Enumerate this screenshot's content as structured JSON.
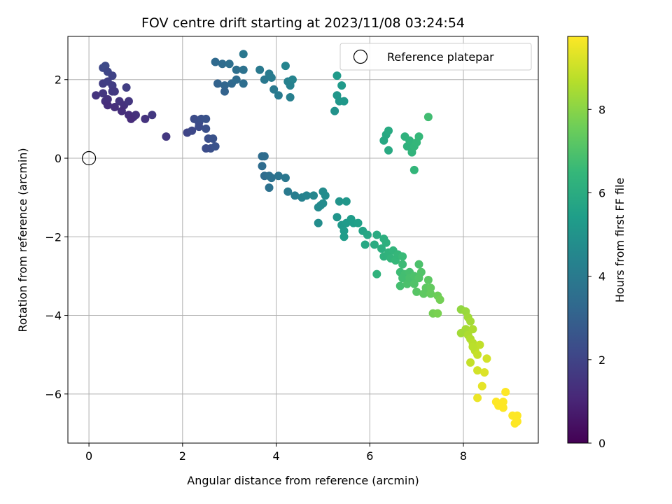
{
  "chart_data": {
    "type": "scatter",
    "title": "FOV centre drift starting at 2023/11/08 03:24:54",
    "xlabel": "Angular distance from reference (arcmin)",
    "ylabel": "Rotation from reference (arcmin)",
    "xlim": [
      -0.45,
      9.6
    ],
    "ylim": [
      -7.25,
      3.1
    ],
    "x_ticks": [
      0,
      2,
      4,
      6,
      8
    ],
    "x_tick_labels": [
      "0",
      "2",
      "4",
      "6",
      "8"
    ],
    "y_ticks": [
      -6,
      -4,
      -2,
      0,
      2
    ],
    "y_tick_labels": [
      "−6",
      "−4",
      "−2",
      "0",
      "2"
    ],
    "grid": true,
    "legend": {
      "placement": "top-right",
      "entries": [
        {
          "label": "Reference platepar",
          "marker": "open-circle"
        }
      ]
    },
    "reference_point": {
      "x": 0,
      "y": 0
    },
    "colorbar": {
      "label": "Hours from first FF file",
      "range": [
        0,
        9.75
      ],
      "ticks": [
        0,
        2,
        4,
        6,
        8
      ],
      "tick_labels": [
        "0",
        "2",
        "4",
        "6",
        "8"
      ],
      "colormap": "viridis",
      "stops": [
        "#440154",
        "#482878",
        "#3e4989",
        "#31688e",
        "#26828e",
        "#1f9e89",
        "#35b779",
        "#6ece58",
        "#b5de2b",
        "#fde725"
      ]
    },
    "series": [
      {
        "points": [
          [
            6.3,
            0.45
          ],
          [
            6.35,
            0.6
          ],
          [
            6.4,
            0.7
          ],
          [
            6.4,
            0.2
          ],
          [
            6.75,
            0.55
          ],
          [
            6.8,
            0.3
          ],
          [
            6.85,
            0.45
          ],
          [
            6.9,
            0.15
          ],
          [
            6.95,
            0.3
          ],
          [
            7.0,
            0.4
          ],
          [
            7.05,
            0.55
          ],
          [
            6.95,
            -0.3
          ],
          [
            7.25,
            1.05
          ],
          [
            5.3,
            2.1
          ],
          [
            5.3,
            1.6
          ],
          [
            5.4,
            1.85
          ],
          [
            5.25,
            1.2
          ],
          [
            5.35,
            1.45
          ],
          [
            5.45,
            1.45
          ],
          [
            3.65,
            2.25
          ],
          [
            3.75,
            2.0
          ],
          [
            3.85,
            2.15
          ],
          [
            3.9,
            2.05
          ],
          [
            3.95,
            1.75
          ],
          [
            4.05,
            1.6
          ],
          [
            4.2,
            2.35
          ],
          [
            4.25,
            1.95
          ],
          [
            4.3,
            1.55
          ],
          [
            4.35,
            2.0
          ],
          [
            4.3,
            1.85
          ],
          [
            2.7,
            2.45
          ],
          [
            2.85,
            2.4
          ],
          [
            3.0,
            2.4
          ],
          [
            3.15,
            2.25
          ],
          [
            3.3,
            2.65
          ],
          [
            3.3,
            2.25
          ],
          [
            2.75,
            1.9
          ],
          [
            2.9,
            1.85
          ],
          [
            3.05,
            1.9
          ],
          [
            3.15,
            2.0
          ],
          [
            3.3,
            1.9
          ],
          [
            2.9,
            1.7
          ],
          [
            0.3,
            2.3
          ],
          [
            0.35,
            2.35
          ],
          [
            0.4,
            2.2
          ],
          [
            0.5,
            2.1
          ],
          [
            0.3,
            1.9
          ],
          [
            0.4,
            1.95
          ],
          [
            0.5,
            1.85
          ],
          [
            0.3,
            1.65
          ],
          [
            0.5,
            1.7
          ],
          [
            0.4,
            1.5
          ],
          [
            0.35,
            1.45
          ],
          [
            0.55,
            1.7
          ],
          [
            0.15,
            1.6
          ],
          [
            0.8,
            1.8
          ],
          [
            0.4,
            1.35
          ],
          [
            0.55,
            1.3
          ],
          [
            0.65,
            1.45
          ],
          [
            0.75,
            1.35
          ],
          [
            0.85,
            1.45
          ],
          [
            0.7,
            1.2
          ],
          [
            0.85,
            1.1
          ],
          [
            0.95,
            1.05
          ],
          [
            1.0,
            1.1
          ],
          [
            0.9,
            1.0
          ],
          [
            1.2,
            1.0
          ],
          [
            1.35,
            1.1
          ],
          [
            1.65,
            0.55
          ],
          [
            2.1,
            0.65
          ],
          [
            2.2,
            0.7
          ],
          [
            2.25,
            1.0
          ],
          [
            2.35,
            0.9
          ],
          [
            2.4,
            1.0
          ],
          [
            2.5,
            1.0
          ],
          [
            2.35,
            0.8
          ],
          [
            2.5,
            0.75
          ],
          [
            2.55,
            0.5
          ],
          [
            2.6,
            0.25
          ],
          [
            2.7,
            0.3
          ],
          [
            2.65,
            0.5
          ],
          [
            2.5,
            0.25
          ],
          [
            3.7,
            0.05
          ],
          [
            3.75,
            0.05
          ],
          [
            3.7,
            -0.2
          ],
          [
            3.75,
            -0.45
          ],
          [
            3.85,
            -0.45
          ],
          [
            3.9,
            -0.5
          ],
          [
            3.85,
            -0.75
          ],
          [
            4.05,
            -0.45
          ],
          [
            4.2,
            -0.5
          ],
          [
            4.25,
            -0.85
          ],
          [
            4.4,
            -0.95
          ],
          [
            4.55,
            -1.0
          ],
          [
            4.65,
            -0.95
          ],
          [
            4.8,
            -0.95
          ],
          [
            5.0,
            -0.85
          ],
          [
            5.05,
            -0.95
          ],
          [
            5.0,
            -1.15
          ],
          [
            4.95,
            -1.2
          ],
          [
            4.9,
            -1.25
          ],
          [
            4.9,
            -1.65
          ],
          [
            5.35,
            -1.1
          ],
          [
            5.5,
            -1.1
          ],
          [
            5.3,
            -1.5
          ],
          [
            5.4,
            -1.7
          ],
          [
            5.45,
            -1.85
          ],
          [
            5.45,
            -2.0
          ],
          [
            5.5,
            -1.65
          ],
          [
            5.6,
            -1.55
          ],
          [
            5.65,
            -1.65
          ],
          [
            5.75,
            -1.65
          ],
          [
            5.85,
            -1.85
          ],
          [
            5.95,
            -1.95
          ],
          [
            5.9,
            -2.2
          ],
          [
            6.1,
            -2.2
          ],
          [
            6.15,
            -1.95
          ],
          [
            6.3,
            -2.05
          ],
          [
            6.35,
            -2.15
          ],
          [
            6.25,
            -2.3
          ],
          [
            6.3,
            -2.5
          ],
          [
            6.4,
            -2.4
          ],
          [
            6.45,
            -2.55
          ],
          [
            6.5,
            -2.35
          ],
          [
            6.55,
            -2.6
          ],
          [
            6.6,
            -2.45
          ],
          [
            6.15,
            -2.95
          ],
          [
            6.7,
            -2.5
          ],
          [
            6.7,
            -2.7
          ],
          [
            6.65,
            -2.9
          ],
          [
            6.75,
            -2.95
          ],
          [
            6.85,
            -2.9
          ],
          [
            6.7,
            -3.05
          ],
          [
            6.65,
            -3.25
          ],
          [
            6.8,
            -3.2
          ],
          [
            6.85,
            -3.05
          ],
          [
            6.95,
            -3.0
          ],
          [
            6.95,
            -3.2
          ],
          [
            7.0,
            -3.4
          ],
          [
            7.05,
            -3.05
          ],
          [
            7.1,
            -2.9
          ],
          [
            7.05,
            -2.7
          ],
          [
            7.2,
            -3.3
          ],
          [
            7.15,
            -3.45
          ],
          [
            7.25,
            -3.1
          ],
          [
            7.3,
            -3.3
          ],
          [
            7.3,
            -3.45
          ],
          [
            7.45,
            -3.5
          ],
          [
            7.5,
            -3.6
          ],
          [
            7.35,
            -3.95
          ],
          [
            7.45,
            -3.95
          ],
          [
            7.95,
            -3.85
          ],
          [
            8.05,
            -3.9
          ],
          [
            8.1,
            -4.05
          ],
          [
            8.15,
            -4.15
          ],
          [
            8.05,
            -4.35
          ],
          [
            8.2,
            -4.35
          ],
          [
            7.95,
            -4.45
          ],
          [
            8.1,
            -4.5
          ],
          [
            8.15,
            -4.6
          ],
          [
            8.2,
            -4.7
          ],
          [
            8.25,
            -4.9
          ],
          [
            8.35,
            -4.75
          ],
          [
            8.2,
            -4.8
          ],
          [
            8.3,
            -5.0
          ],
          [
            8.15,
            -5.2
          ],
          [
            8.3,
            -5.4
          ],
          [
            8.5,
            -5.1
          ],
          [
            8.45,
            -5.45
          ],
          [
            8.4,
            -5.8
          ],
          [
            8.3,
            -6.1
          ],
          [
            8.7,
            -6.2
          ],
          [
            8.8,
            -6.25
          ],
          [
            8.75,
            -6.3
          ],
          [
            8.85,
            -6.2
          ],
          [
            8.9,
            -5.95
          ],
          [
            8.85,
            -6.35
          ],
          [
            9.05,
            -6.55
          ],
          [
            9.15,
            -6.55
          ],
          [
            9.1,
            -6.75
          ],
          [
            9.15,
            -6.7
          ]
        ]
      }
    ]
  }
}
